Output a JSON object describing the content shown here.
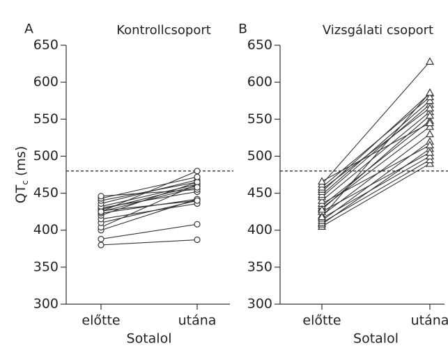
{
  "chart_data": [
    {
      "type": "paired-line",
      "panel": "A",
      "title": "Kontrollcsoport",
      "y_label": "QT",
      "y_label_sub": "c",
      "y_label_unit": "(ms)",
      "categories": [
        "előtte",
        "utána"
      ],
      "x_label": "Sotalol",
      "ylim": [
        300,
        650
      ],
      "yticks": [
        300,
        350,
        400,
        450,
        500,
        550,
        600,
        650
      ],
      "hline": 480,
      "marker": "circle",
      "color": "#333333",
      "series": [
        {
          "values": [
            380,
            387
          ]
        },
        {
          "values": [
            388,
            408
          ]
        },
        {
          "values": [
            400,
            442
          ]
        },
        {
          "values": [
            404,
            462
          ]
        },
        {
          "values": [
            410,
            440
          ]
        },
        {
          "values": [
            415,
            436
          ]
        },
        {
          "values": [
            420,
            465
          ]
        },
        {
          "values": [
            423,
            442
          ]
        },
        {
          "values": [
            425,
            480
          ]
        },
        {
          "values": [
            426,
            440
          ]
        },
        {
          "values": [
            428,
            460
          ]
        },
        {
          "values": [
            430,
            452
          ]
        },
        {
          "values": [
            432,
            462
          ]
        },
        {
          "values": [
            436,
            468
          ]
        },
        {
          "values": [
            440,
            465
          ]
        },
        {
          "values": [
            443,
            472
          ]
        },
        {
          "values": [
            446,
            455
          ]
        },
        {
          "values": [
            425,
            458
          ]
        }
      ]
    },
    {
      "type": "paired-line",
      "panel": "B",
      "title": "Vizsgálati csoport",
      "categories": [
        "előtte",
        "utána"
      ],
      "x_label": "Sotalol",
      "ylim": [
        300,
        650
      ],
      "yticks": [
        300,
        350,
        400,
        450,
        500,
        550,
        600,
        650
      ],
      "hline": 480,
      "marker": "triangle",
      "color": "#333333",
      "series": [
        {
          "values": [
            405,
            490
          ]
        },
        {
          "values": [
            408,
            510
          ]
        },
        {
          "values": [
            410,
            495
          ]
        },
        {
          "values": [
            413,
            520
          ]
        },
        {
          "values": [
            416,
            500
          ]
        },
        {
          "values": [
            420,
            530
          ]
        },
        {
          "values": [
            425,
            505
          ]
        },
        {
          "values": [
            430,
            540
          ]
        },
        {
          "values": [
            433,
            548
          ]
        },
        {
          "values": [
            436,
            515
          ]
        },
        {
          "values": [
            440,
            560
          ]
        },
        {
          "values": [
            445,
            570
          ]
        },
        {
          "values": [
            448,
            575
          ]
        },
        {
          "values": [
            452,
            585
          ]
        },
        {
          "values": [
            455,
            565
          ]
        },
        {
          "values": [
            458,
            580
          ]
        },
        {
          "values": [
            462,
            628
          ]
        },
        {
          "values": [
            466,
            545
          ]
        },
        {
          "values": [
            428,
            555
          ]
        },
        {
          "values": [
            418,
            586
          ]
        }
      ]
    }
  ]
}
